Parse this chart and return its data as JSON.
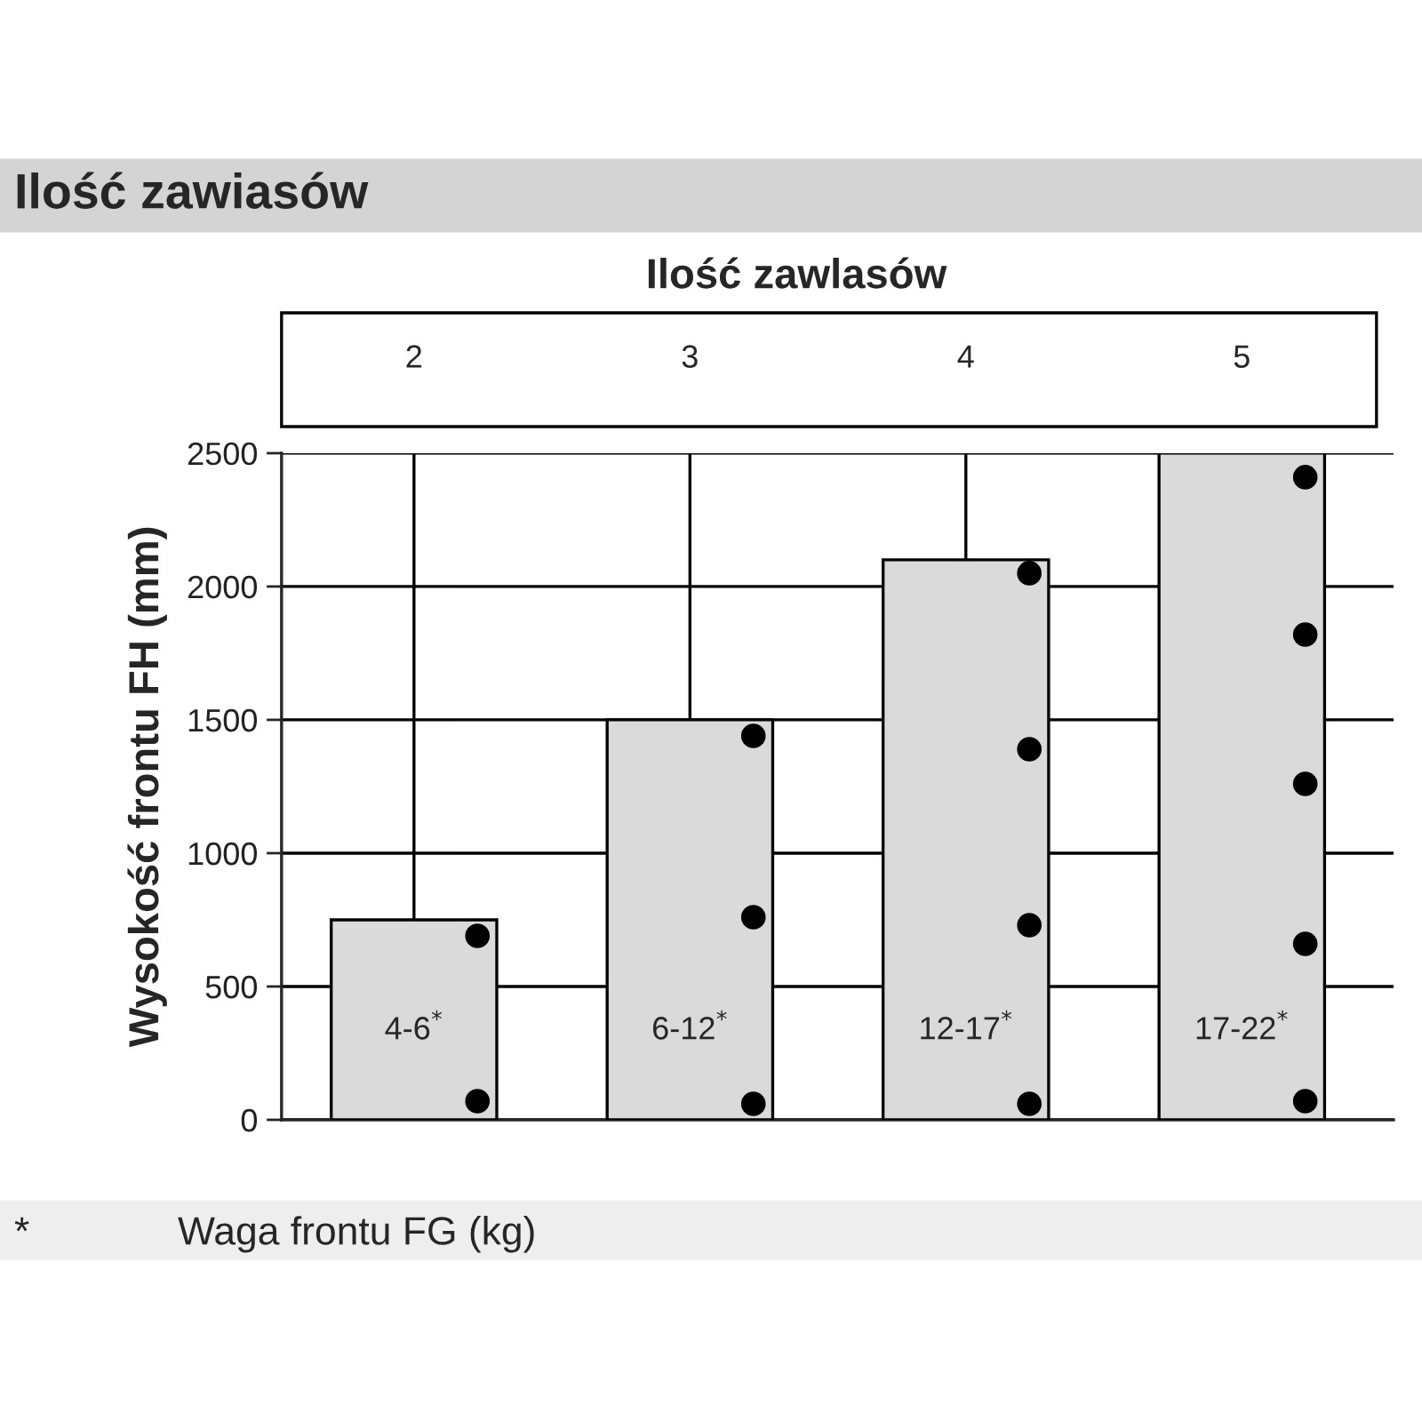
{
  "chart_data": {
    "type": "bar",
    "title": "Ilość zawiasów",
    "subtitle": "Ilość zawlasów",
    "ylabel": "Wysokość frontu FH (mm)",
    "categories": [
      "2",
      "3",
      "4",
      "5"
    ],
    "ylim": [
      0,
      2500
    ],
    "yticks": [
      0,
      500,
      1000,
      1500,
      2000,
      2500
    ],
    "grid": true,
    "marker": "circle",
    "series": [
      {
        "color": "#dadada",
        "values": [
          750,
          1500,
          2100,
          2500
        ]
      },
      {
        "type": "scatter",
        "color": "#000000",
        "x": [
          "2",
          "2",
          "3",
          "3",
          "3",
          "4",
          "4",
          "4",
          "4",
          "5",
          "5",
          "5",
          "5",
          "5"
        ],
        "values": [
          690,
          70,
          1440,
          760,
          60,
          2050,
          1390,
          730,
          60,
          2410,
          1820,
          1260,
          660,
          70
        ]
      }
    ],
    "annotations": [
      "4-6$^{*}$",
      "6-12$^{*}$",
      "12-17$^{*}$",
      "17-22$^{*}$",
      "*",
      "Waga frontu FG (kg)"
    ]
  }
}
